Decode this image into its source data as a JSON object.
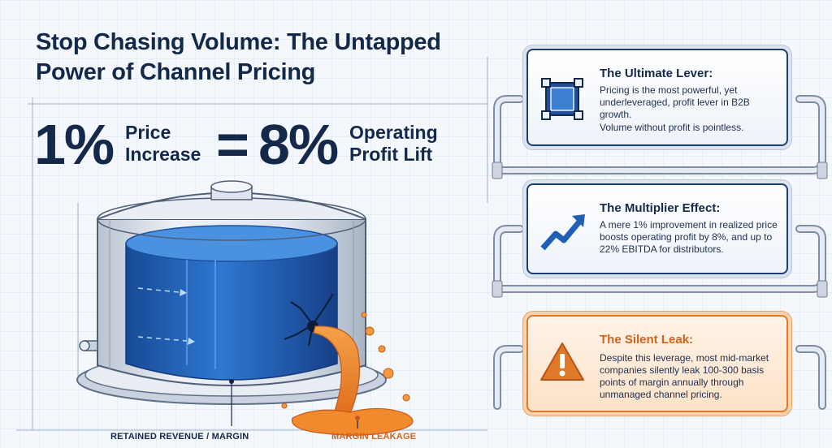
{
  "header": {
    "title": "Stop Chasing Volume: The Untapped Power of Channel Pricing"
  },
  "equation": {
    "left_value": "1%",
    "left_label_1": "Price",
    "left_label_2": "Increase",
    "operator": "=",
    "right_value": "8%",
    "right_label_1": "Operating",
    "right_label_2": "Profit Lift"
  },
  "tank": {
    "retained_label": "RETAINED REVENUE / MARGIN",
    "leak_label": "MARGIN LEAKAGE"
  },
  "cards": [
    {
      "title": "The Ultimate Lever:",
      "body_1": "Pricing is the most powerful, yet underleveraged, profit lever in B2B growth.",
      "body_2": "Volume without profit is pointless.",
      "icon": "square-frame-icon"
    },
    {
      "title": "The Multiplier Effect:",
      "body_1": "A mere 1% improvement in realized price boosts operating profit by 8%, and up to 22% EBITDA for distributors.",
      "icon": "trend-up-arrow-icon"
    },
    {
      "title": "The Silent Leak:",
      "body_1": "Despite this leverage, most mid-market companies silently leak 100-300 basis points of margin annually through unmanaged channel pricing.",
      "icon": "warning-triangle-icon"
    }
  ],
  "colors": {
    "navy": "#14284a",
    "water_blue": "#1f5fb8",
    "leak_orange": "#f08a2c",
    "warn_orange": "#e0782a"
  }
}
